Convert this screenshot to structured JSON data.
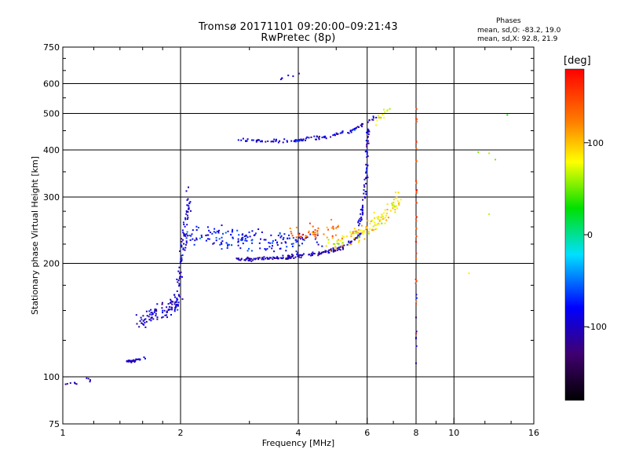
{
  "header": {
    "title_line1": "Tromsø 20171101 09:20:00–09:21:43",
    "title_line2": "RwPretec (8p)"
  },
  "phases_box": {
    "title": "Phases",
    "line_o": "mean, sd,O: -83.2, 19.0",
    "line_x": "mean, sd,X:  92.8, 21.9"
  },
  "colorbar": {
    "label": "[deg]",
    "ticks": [
      {
        "v": 100,
        "label": "100"
      },
      {
        "v": 0,
        "label": "0"
      },
      {
        "v": -100,
        "label": "-100"
      }
    ],
    "range": [
      -180,
      180
    ]
  },
  "chart_data": {
    "type": "scatter",
    "xlabel": "Frequency [MHz]",
    "ylabel": "Stationary phase Virtual Height [km]",
    "xscale": "log",
    "yscale": "log",
    "xlim": [
      1,
      16
    ],
    "ylim": [
      75,
      750
    ],
    "xticks": [
      {
        "v": 1,
        "label": "1"
      },
      {
        "v": 2,
        "label": "2"
      },
      {
        "v": 4,
        "label": "4"
      },
      {
        "v": 6,
        "label": "6"
      },
      {
        "v": 8,
        "label": "8"
      },
      {
        "v": 10,
        "label": "10"
      },
      {
        "v": 16,
        "label": "16"
      }
    ],
    "yticks": [
      {
        "v": 75,
        "label": "75"
      },
      {
        "v": 100,
        "label": "100"
      },
      {
        "v": 200,
        "label": "200"
      },
      {
        "v": 300,
        "label": "300"
      },
      {
        "v": 400,
        "label": "400"
      },
      {
        "v": 500,
        "label": "500"
      },
      {
        "v": 600,
        "label": "600"
      },
      {
        "v": 750,
        "label": "750"
      }
    ],
    "gridlines_x": [
      2,
      4,
      6,
      8,
      10
    ],
    "gridlines_y": [
      100,
      200,
      300,
      400,
      500,
      600
    ],
    "colormap": "rainbow",
    "traces": [
      {
        "x": [
          1.0,
          1.05,
          1.12,
          1.2,
          1.3
        ],
        "y": [
          95,
          96,
          97,
          98,
          100
        ],
        "phase": -110,
        "n": 10,
        "jx": 0.02,
        "jy": 0.02
      },
      {
        "x": [
          1.45,
          1.5,
          1.55,
          1.62
        ],
        "y": [
          110,
          110,
          111,
          112
        ],
        "phase": -105,
        "n": 35,
        "jx": 0.01,
        "jy": 0.008
      },
      {
        "x": [
          1.55,
          1.7,
          1.85,
          1.95
        ],
        "y": [
          140,
          145,
          150,
          160
        ],
        "phase": -100,
        "n": 90,
        "jx": 0.03,
        "jy": 0.05
      },
      {
        "x": [
          1.95,
          2.0,
          2.05,
          2.1
        ],
        "y": [
          150,
          200,
          240,
          300
        ],
        "phase": -95,
        "n": 90,
        "jx": 0.015,
        "jy": 0.08
      },
      {
        "x": [
          2.1,
          2.4,
          2.8,
          3.2,
          3.8,
          4.5
        ],
        "y": [
          240,
          235,
          232,
          230,
          228,
          232
        ],
        "phase": -80,
        "n": 170,
        "jx": 0.03,
        "jy": 0.06
      },
      {
        "x": [
          2.8,
          3.2,
          3.8,
          4.5,
          5.2,
          5.8
        ],
        "y": [
          205,
          206,
          208,
          212,
          220,
          240
        ],
        "phase": -105,
        "n": 160,
        "jx": 0.01,
        "jy": 0.012
      },
      {
        "x": [
          5.7,
          5.85,
          5.95,
          6.0,
          6.02
        ],
        "y": [
          250,
          280,
          320,
          380,
          460
        ],
        "phase": -95,
        "n": 70,
        "jx": 0.01,
        "jy": 0.03
      },
      {
        "x": [
          4.8,
          5.4,
          6.0,
          6.5,
          7.0,
          7.3
        ],
        "y": [
          225,
          232,
          245,
          265,
          285,
          295
        ],
        "phase": 90,
        "n": 130,
        "jx": 0.025,
        "jy": 0.05
      },
      {
        "x": [
          3.8,
          4.2,
          4.6,
          5.0
        ],
        "y": [
          235,
          240,
          245,
          250
        ],
        "phase": 130,
        "n": 45,
        "jx": 0.04,
        "jy": 0.05
      },
      {
        "x": [
          2.8,
          3.4,
          4.0,
          4.8,
          5.5,
          6.3
        ],
        "y": [
          425,
          422,
          425,
          435,
          450,
          490
        ],
        "phase": -95,
        "n": 110,
        "jx": 0.008,
        "jy": 0.01
      },
      {
        "x": [
          6.3,
          6.6,
          6.9
        ],
        "y": [
          480,
          500,
          520
        ],
        "phase": 80,
        "n": 15,
        "jx": 0.01,
        "jy": 0.03
      },
      {
        "x": [
          8.0,
          8.02
        ],
        "y": [
          150,
          500
        ],
        "phase": 150,
        "n": 30,
        "jx": 0.003,
        "jy": 0.3
      },
      {
        "x": [
          8.0,
          8.02
        ],
        "y": [
          110,
          160
        ],
        "phase": -100,
        "n": 8,
        "jx": 0.003,
        "jy": 0.1
      },
      {
        "x": [
          3.5,
          3.8,
          4.1
        ],
        "y": [
          615,
          625,
          635
        ],
        "phase": -100,
        "n": 6,
        "jx": 0.02,
        "jy": 0.01
      },
      {
        "x": [
          10.5,
          12.0,
          14.0
        ],
        "y": [
          200,
          300,
          500
        ],
        "phase": 60,
        "n": 6,
        "jx": 0.05,
        "jy": 0.3
      }
    ]
  }
}
